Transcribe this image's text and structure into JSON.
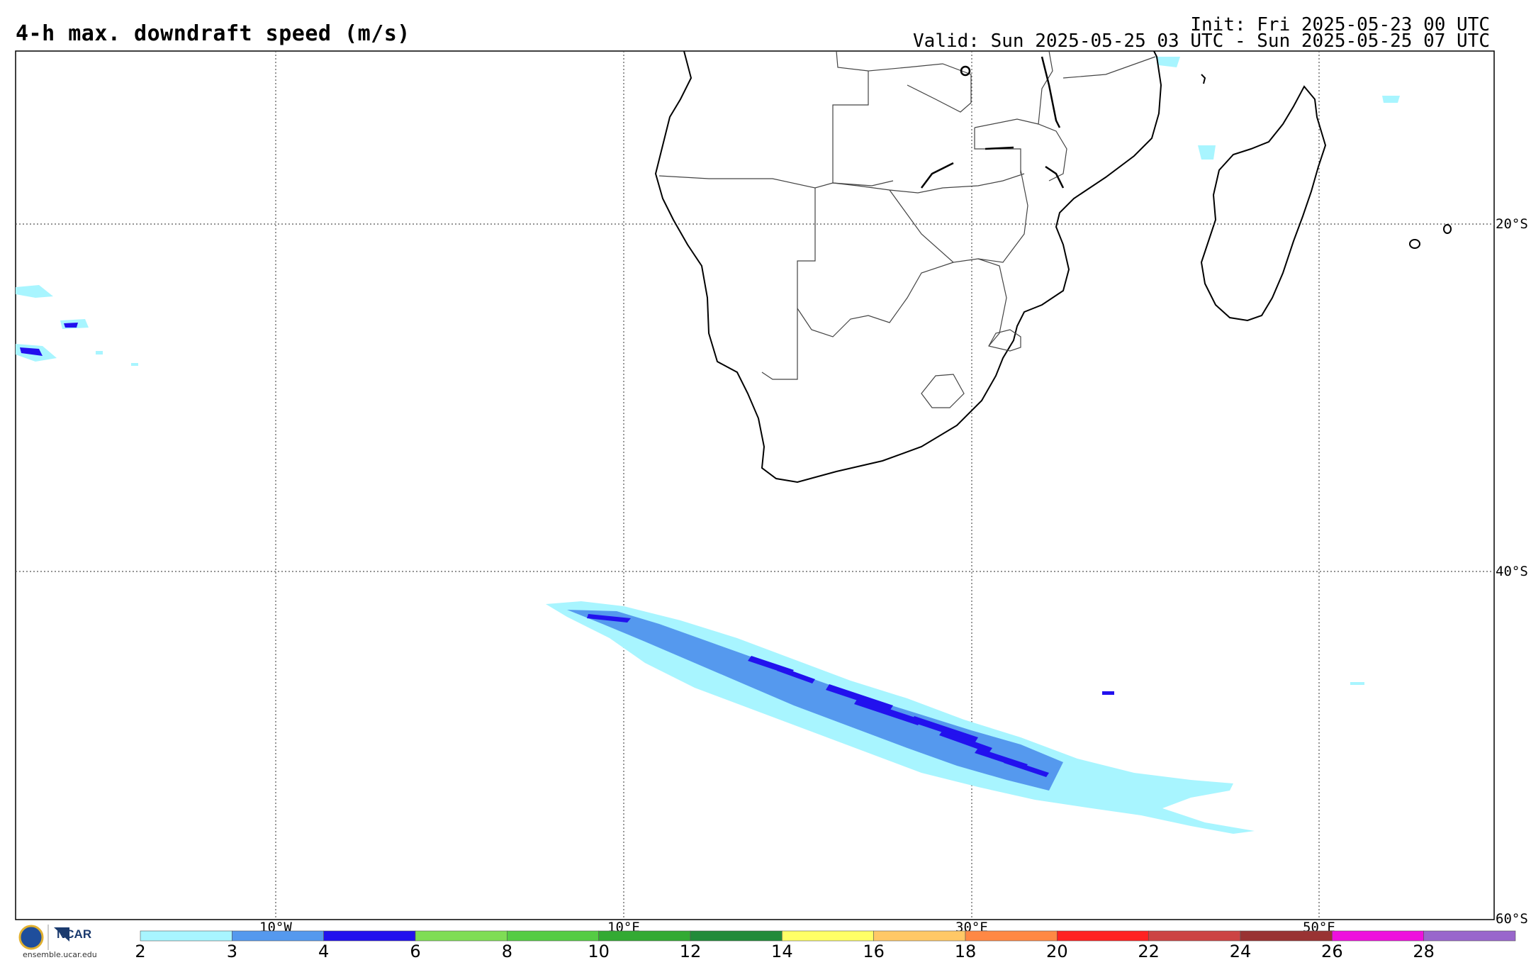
{
  "header": {
    "title": "4-h max. downdraft speed (m/s)",
    "init": "Init: Fri 2025-05-23 00 UTC",
    "valid": "Valid: Sun 2025-05-25 03 UTC - Sun 2025-05-25 07 UTC"
  },
  "map": {
    "lat_labels": [
      "20°S",
      "40°S",
      "60°S"
    ],
    "lon_labels": [
      "10°W",
      "10°E",
      "30°E",
      "50°E"
    ]
  },
  "colorbar": {
    "ticks": [
      "2",
      "3",
      "4",
      "6",
      "8",
      "10",
      "12",
      "14",
      "16",
      "18",
      "20",
      "22",
      "24",
      "26",
      "28"
    ],
    "colors": [
      "#a8f5ff",
      "#5599ee",
      "#2211ee",
      "#7fdd55",
      "#55cc44",
      "#33aa33",
      "#228b3a",
      "#ffff66",
      "#ffc866",
      "#ff8844",
      "#ff2222",
      "#cc4444",
      "#993333",
      "#ee11dd",
      "#9966cc"
    ]
  },
  "logo": {
    "org": "NCAR",
    "url": "ensemble.ucar.edu"
  }
}
